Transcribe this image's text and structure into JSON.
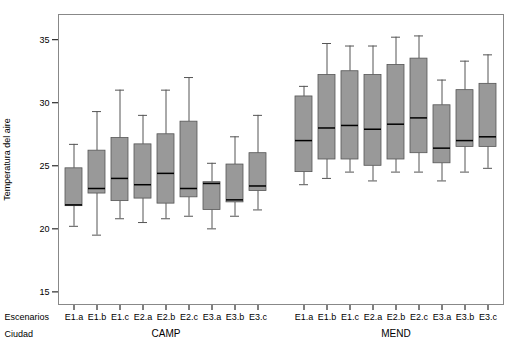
{
  "chart_data": {
    "type": "box",
    "ylabel": "Temperatura del aire",
    "xlabel": "Escenarios",
    "group_label": "Ciudad",
    "color": "#999999",
    "ylim": [
      14,
      37
    ],
    "yticks": [
      15,
      20,
      25,
      30,
      35
    ],
    "grid": false,
    "groups": [
      {
        "name": "CAMP",
        "categories": [
          "E1.a",
          "E1.b",
          "E1.c",
          "E2.a",
          "E2.b",
          "E2.c",
          "E3.a",
          "E3.b",
          "E3.c"
        ],
        "whislo": [
          20.2,
          19.5,
          20.8,
          20.5,
          20.8,
          21.0,
          20.0,
          21.0,
          21.5
        ],
        "q1": [
          21.8,
          22.8,
          22.2,
          22.4,
          22.0,
          22.5,
          21.5,
          22.1,
          23.0
        ],
        "med": [
          21.9,
          23.2,
          24.0,
          23.5,
          24.4,
          23.2,
          23.6,
          22.3,
          23.4
        ],
        "q3": [
          24.8,
          26.2,
          27.2,
          26.7,
          27.5,
          28.5,
          23.7,
          25.1,
          26.0
        ],
        "whishi": [
          26.7,
          29.3,
          31.0,
          29.0,
          31.0,
          32.0,
          25.2,
          27.3,
          29.0
        ]
      },
      {
        "name": "MEND",
        "categories": [
          "E1.a",
          "E1.b",
          "E1.c",
          "E2.a",
          "E2.b",
          "E2.c",
          "E3.a",
          "E3.b",
          "E3.c"
        ],
        "whislo": [
          23.5,
          24.0,
          24.5,
          23.8,
          24.5,
          24.5,
          23.8,
          24.5,
          24.8
        ],
        "q1": [
          24.5,
          25.5,
          25.5,
          25.0,
          25.5,
          26.0,
          25.2,
          26.5,
          26.5
        ],
        "med": [
          27.0,
          28.0,
          28.2,
          27.9,
          28.3,
          28.8,
          26.4,
          27.0,
          27.3
        ],
        "q3": [
          30.5,
          32.2,
          32.5,
          32.2,
          33.0,
          33.5,
          29.8,
          31.0,
          31.5
        ],
        "whishi": [
          31.3,
          34.7,
          34.5,
          34.5,
          35.2,
          35.3,
          31.8,
          33.3,
          33.8
        ]
      }
    ]
  }
}
